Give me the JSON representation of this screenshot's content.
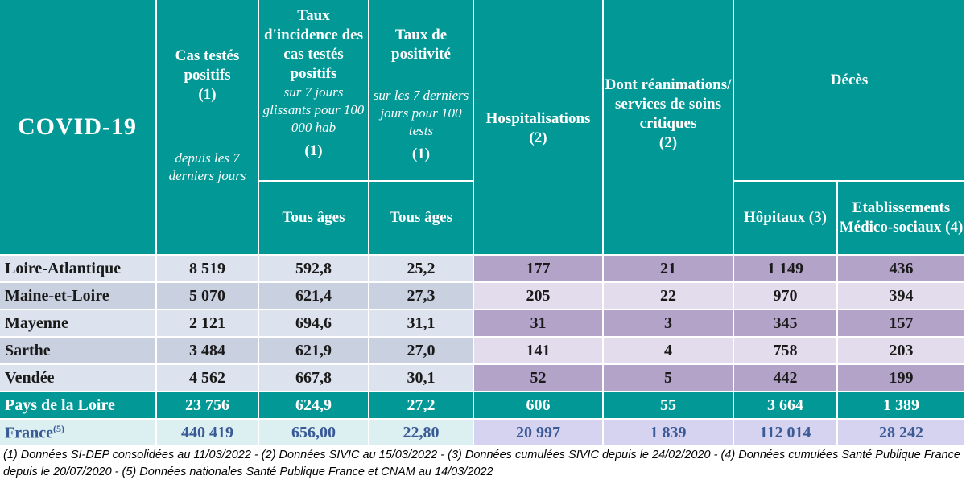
{
  "title": "COVID-19",
  "headers": {
    "cas_title": "Cas testés positifs",
    "cas_ref": "(1)",
    "cas_sub": "depuis les 7 derniers jours",
    "taux_title": "Taux d'incidence des cas testés positifs",
    "taux_sub": "sur 7 jours glissants pour 100 000 hab",
    "taux_ref": "(1)",
    "taux_age": "Tous âges",
    "posit_title": "Taux de positivité",
    "posit_sub": "sur les 7 derniers jours pour 100 tests",
    "posit_ref": "(1)",
    "posit_age": "Tous âges",
    "hosp_title": "Hospitalisations",
    "hosp_ref": "(2)",
    "rea_title": "Dont réanimations/ services de soins critiques",
    "rea_ref": "(2)",
    "deces_title": "Décès",
    "hop_title": "Hôpitaux (3)",
    "ems_title": "Etablissements Médico-sociaux (4)"
  },
  "rows": [
    {
      "name": "Loire-Atlantique",
      "cas": "8 519",
      "taux": "592,8",
      "posit": "25,2",
      "hosp": "177",
      "rea": "21",
      "hop": "1 149",
      "ems": "436"
    },
    {
      "name": "Maine-et-Loire",
      "cas": "5 070",
      "taux": "621,4",
      "posit": "27,3",
      "hosp": "205",
      "rea": "22",
      "hop": "970",
      "ems": "394"
    },
    {
      "name": "Mayenne",
      "cas": "2 121",
      "taux": "694,6",
      "posit": "31,1",
      "hosp": "31",
      "rea": "3",
      "hop": "345",
      "ems": "157"
    },
    {
      "name": "Sarthe",
      "cas": "3 484",
      "taux": "621,9",
      "posit": "27,0",
      "hosp": "141",
      "rea": "4",
      "hop": "758",
      "ems": "203"
    },
    {
      "name": "Vendée",
      "cas": "4 562",
      "taux": "667,8",
      "posit": "30,1",
      "hosp": "52",
      "rea": "5",
      "hop": "442",
      "ems": "199"
    }
  ],
  "total": {
    "name": "Pays de la Loire",
    "cas": "23 756",
    "taux": "624,9",
    "posit": "27,2",
    "hosp": "606",
    "rea": "55",
    "hop": "3 664",
    "ems": "1 389"
  },
  "france": {
    "name": "France",
    "sup": "(5)",
    "cas": "440 419",
    "taux": "656,00",
    "posit": "22,80",
    "hosp": "20 997",
    "rea": "1 839",
    "hop": "112 014",
    "ems": "28 242"
  },
  "footnote": "(1) Données SI-DEP consolidées  au 11/03/2022 -  (2) Données SIVIC au 15/03/2022 - (3) Données cumulées SIVIC depuis le 24/02/2020 - (4) Données cumulées Santé Publique France depuis le 20/07/2020 - (5) Données nationales Santé Publique France et CNAM au 14/03/2022",
  "colors": {
    "header": "#029896",
    "purple_dark": "#b4a3c8",
    "purple_light": "#e3dcec",
    "blue_light": "#dde3ee",
    "blue_mid": "#c9d0e0",
    "france_text": "#3a5a96"
  }
}
